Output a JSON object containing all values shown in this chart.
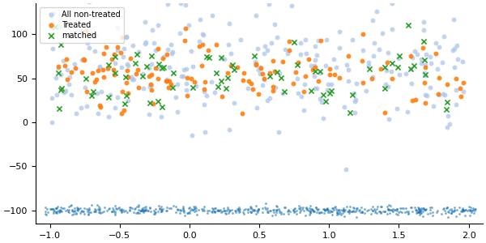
{
  "seed": 42,
  "xlim": [
    -1.1,
    2.1
  ],
  "ylim": [
    -115,
    135
  ],
  "xticks": [
    -1.0,
    -0.5,
    0.0,
    0.5,
    1.0,
    1.5,
    2.0
  ],
  "yticks": [
    -100,
    -50,
    0,
    50,
    100
  ],
  "non_treated_color": "#aec6e8",
  "treated_color": "#ff7f0e",
  "matched_color": "#2ca02c",
  "dense_blue_color": "#1f77b4",
  "legend_labels": [
    "All non-treated",
    "Treated",
    "matched"
  ],
  "figsize": [
    6.0,
    3.0
  ],
  "dpi": 100
}
